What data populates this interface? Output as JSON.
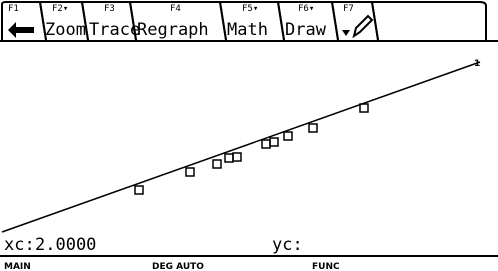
{
  "toolbar": [
    {
      "key": "F1",
      "label": ""
    },
    {
      "key": "F2▾",
      "label": "Zoom"
    },
    {
      "key": "F3",
      "label": "Trace"
    },
    {
      "key": "F4",
      "label": "Regraph"
    },
    {
      "key": "F5▾",
      "label": "Math"
    },
    {
      "key": "F6▾",
      "label": "Draw"
    },
    {
      "key": "F7",
      "label": ""
    }
  ],
  "graph": {
    "line_label": "1"
  },
  "cursor": {
    "x_label": "xc:",
    "x_value": "2.0000",
    "y_label": "yc:"
  },
  "status": {
    "mode": "MAIN",
    "angle": "DEG AUTO",
    "graph_mode": "FUNC"
  }
}
